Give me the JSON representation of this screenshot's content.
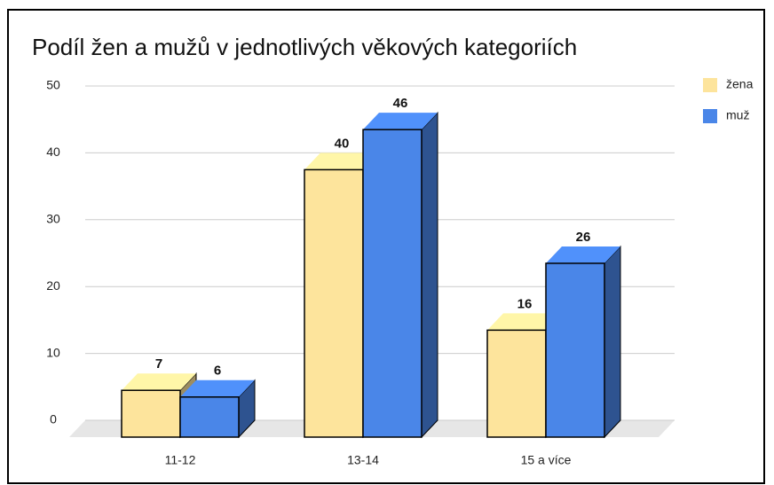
{
  "chart_data": {
    "type": "bar3d",
    "title": "Podíl žen a mužů v jednotlivých věkových kategoriích",
    "categories": [
      "11-12",
      "13-14",
      "15 a více"
    ],
    "series": [
      {
        "name": "žena",
        "color": "#fde49c",
        "values": [
          7,
          40,
          16
        ]
      },
      {
        "name": "muž",
        "color": "#4a86e8",
        "values": [
          6,
          46,
          26
        ]
      }
    ],
    "ylim": [
      0,
      50
    ],
    "yticks": [
      0,
      10,
      20,
      30,
      40,
      50
    ],
    "grid": true,
    "legend": "right"
  }
}
